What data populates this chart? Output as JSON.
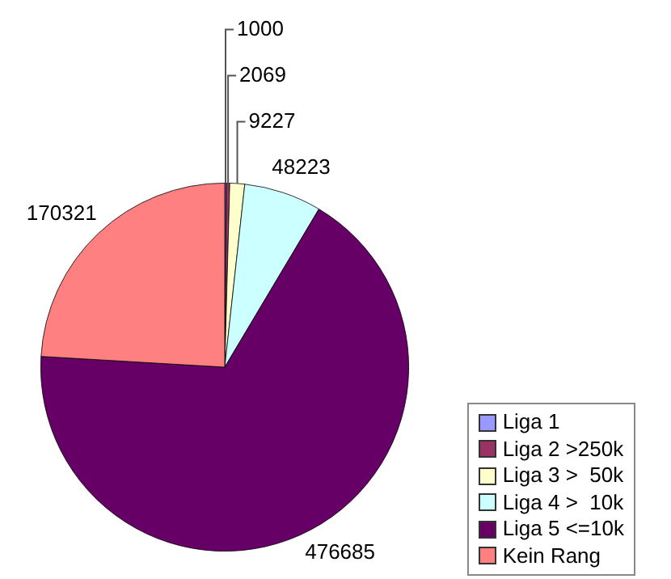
{
  "chart_data": {
    "type": "pie",
    "categories": [
      "Liga 1",
      "Liga 2 >250k",
      "Liga 3 >  50k",
      "Liga 4 >  10k",
      "Liga 5 <=10k",
      "Kein Rang"
    ],
    "values": [
      1000,
      2069,
      9227,
      48223,
      476685,
      170321
    ],
    "colors": [
      "#9999ff",
      "#993366",
      "#ffffcc",
      "#ccffff",
      "#660066",
      "#ff8080"
    ],
    "data_labels": true,
    "legend": "bottom right"
  }
}
